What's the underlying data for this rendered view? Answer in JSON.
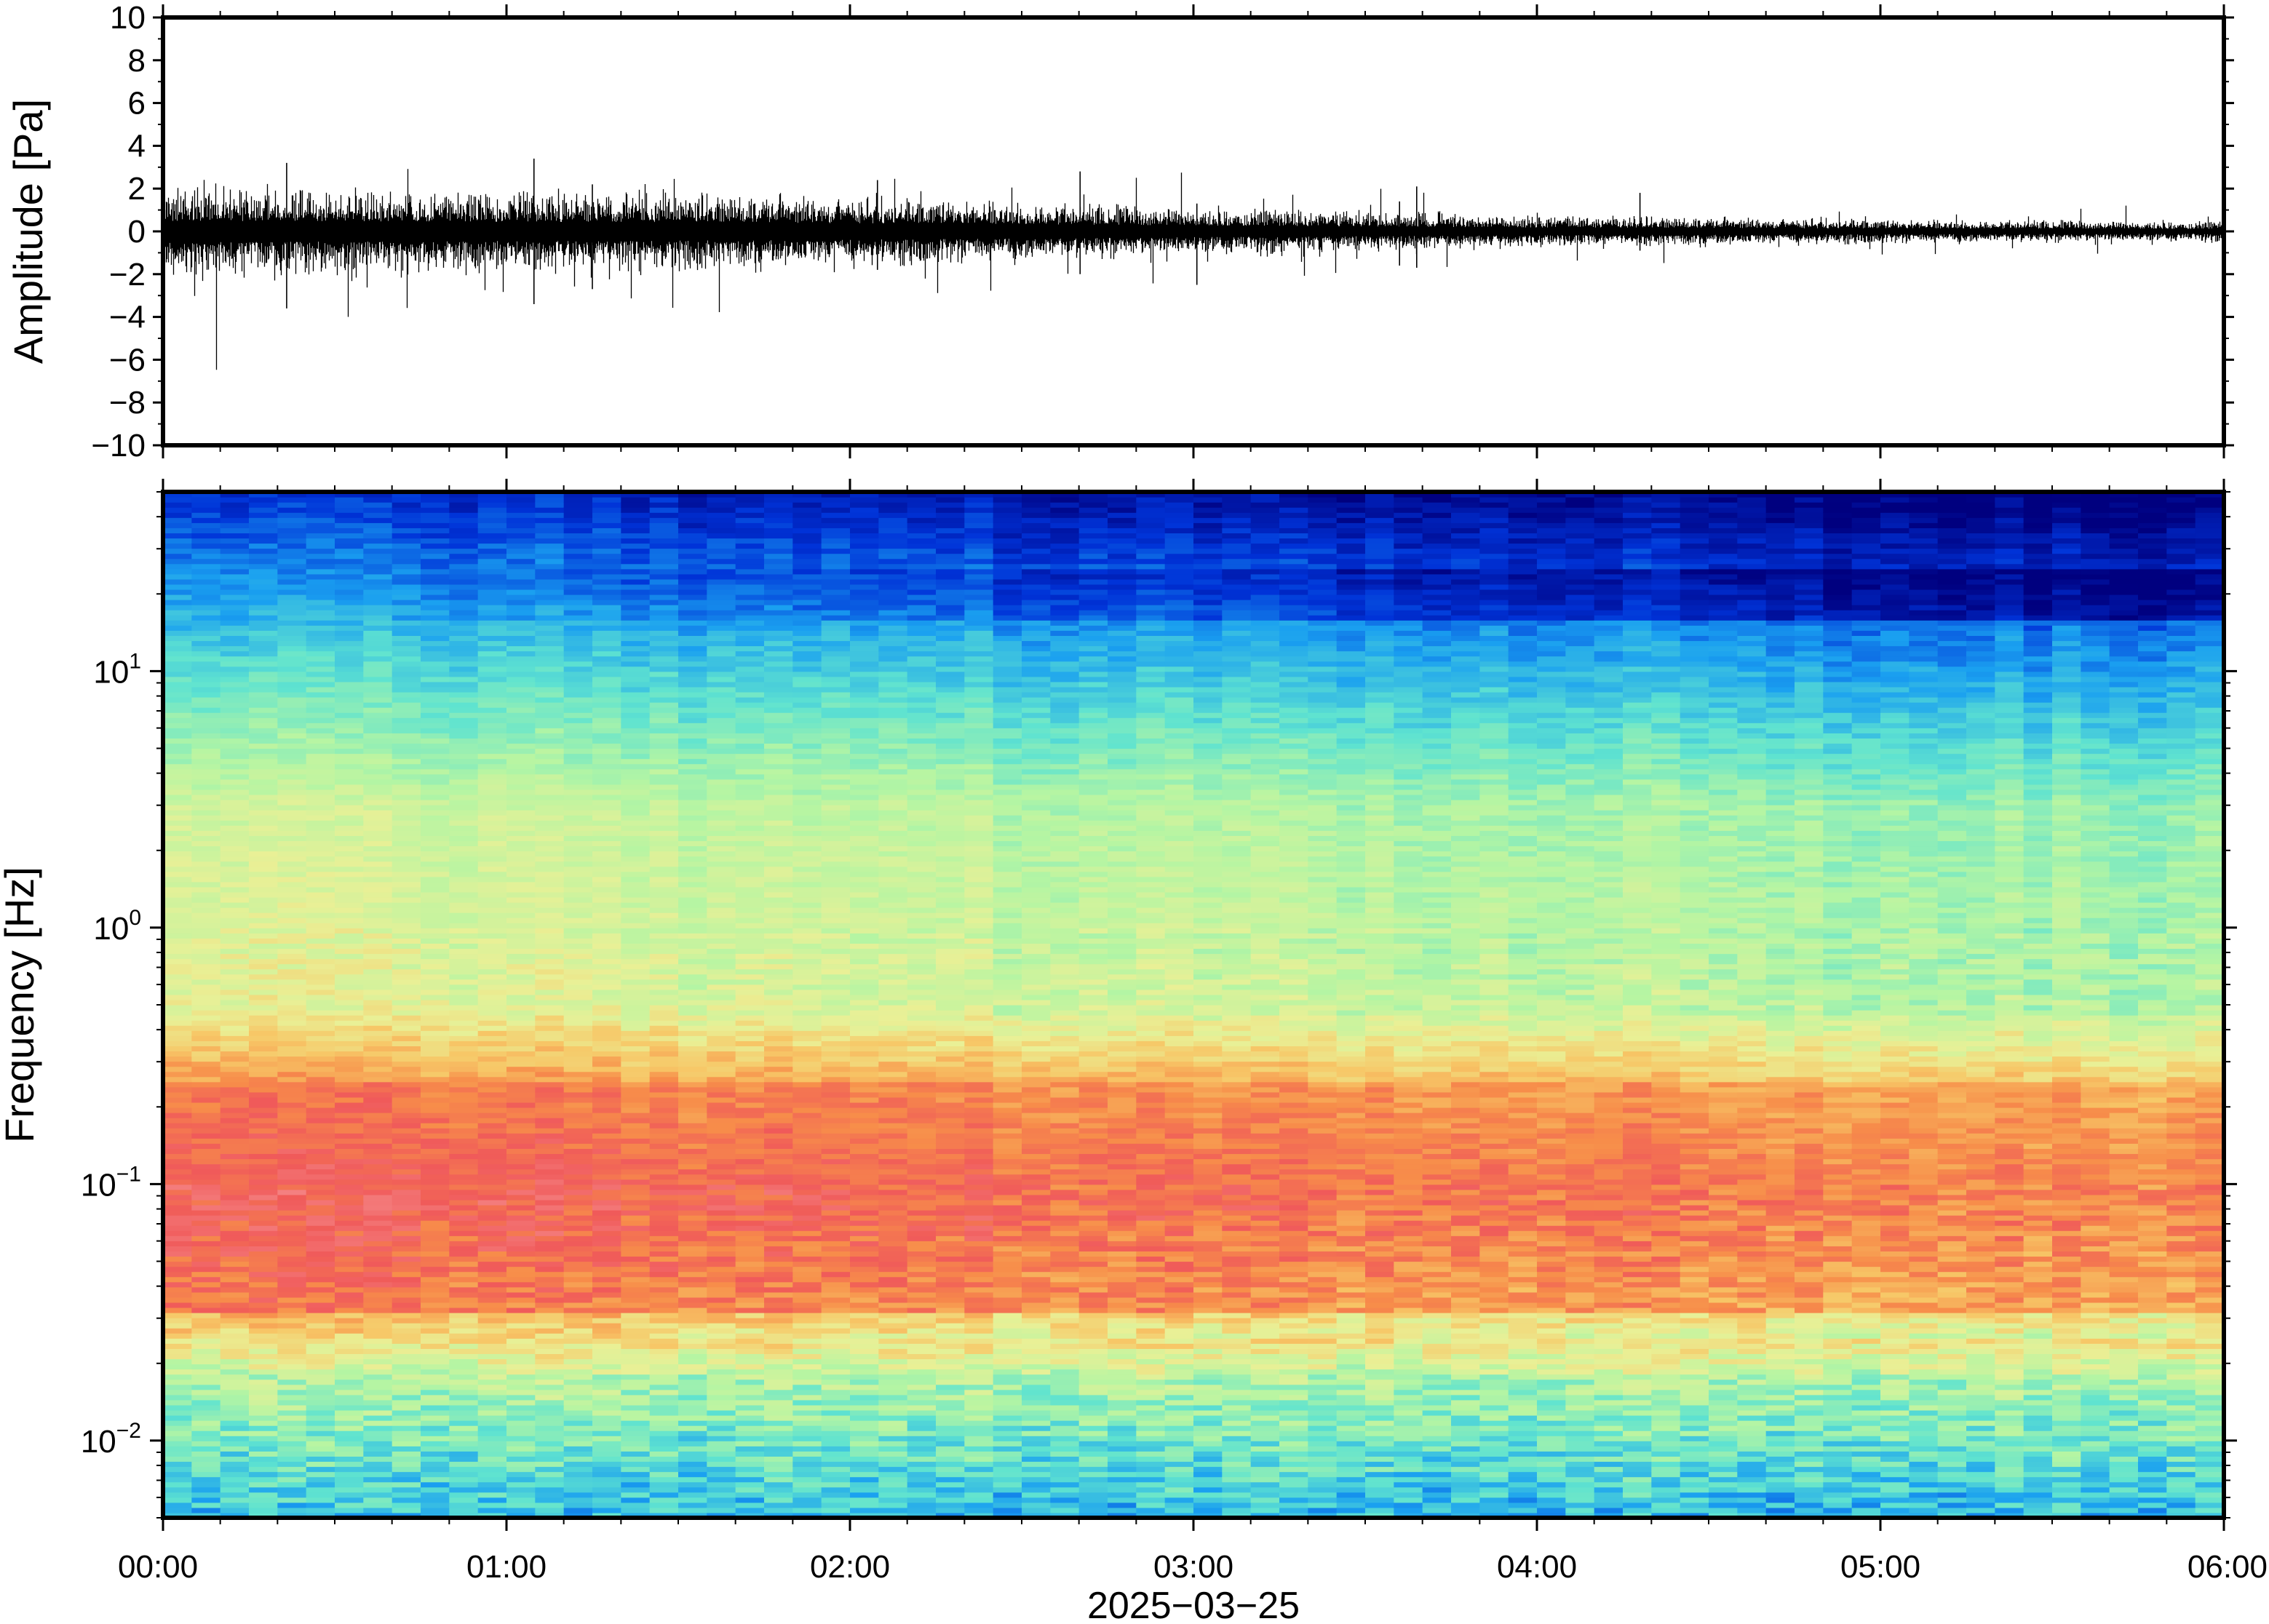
{
  "chart_data": [
    {
      "type": "line",
      "panel": "waveform",
      "ylabel": "Amplitude [Pa]",
      "ylim": [
        -10,
        10
      ],
      "yticks": [
        -10,
        -8,
        -6,
        -4,
        -2,
        0,
        2,
        4,
        6,
        8,
        10
      ],
      "ytick_labels": [
        "−10",
        "−8",
        "−6",
        "−4",
        "−2",
        "0",
        "2",
        "4",
        "6",
        "8",
        "10"
      ],
      "xlim_hours": [
        0,
        6
      ],
      "envelope": {
        "x_hours": [
          0,
          0.5,
          1,
          1.5,
          2,
          2.5,
          3,
          3.5,
          4,
          4.5,
          5,
          5.5,
          6
        ],
        "half_amplitude": [
          1.1,
          1.05,
          1.0,
          0.95,
          0.85,
          0.75,
          0.6,
          0.5,
          0.4,
          0.35,
          0.3,
          0.28,
          0.25
        ]
      },
      "peaks": [
        {
          "x_hours": 0.36,
          "min": -3.6,
          "max": 3.2
        },
        {
          "x_hours": 1.08,
          "min": -3.4,
          "max": 3.4
        },
        {
          "x_hours": 1.25,
          "min": -2.7,
          "max": 2.2
        },
        {
          "x_hours": 2.08,
          "min": -1.8,
          "max": 2.4
        },
        {
          "x_hours": 2.67,
          "min": -2.0,
          "max": 2.8
        },
        {
          "x_hours": 3.01,
          "min": -2.5,
          "max": 1.3
        },
        {
          "x_hours": 3.6,
          "min": -1.6,
          "max": 1.4
        },
        {
          "x_hours": 3.65,
          "min": -1.7,
          "max": 2.1
        },
        {
          "x_hours": 4.3,
          "min": -0.9,
          "max": 1.8
        }
      ],
      "grid": false
    },
    {
      "type": "heatmap",
      "panel": "spectrogram",
      "ylabel": "Frequency [Hz]",
      "yscale": "log",
      "ylim": [
        0.005,
        50
      ],
      "ytick_labels": [
        {
          "base": "10",
          "exp": "−2",
          "value": 0.01
        },
        {
          "base": "10",
          "exp": "−1",
          "value": 0.1
        },
        {
          "base": "10",
          "exp": "0",
          "value": 1
        },
        {
          "base": "10",
          "exp": "1",
          "value": 10
        }
      ],
      "colormap": "rainbow",
      "colors": [
        "#00007f",
        "#0033d8",
        "#1aa0f0",
        "#5fe3d0",
        "#b5f5a3",
        "#e9f096",
        "#f7c767",
        "#f78d4a",
        "#f05a5a",
        "#f58a8a"
      ],
      "description_bands": [
        {
          "freq_hz_range": [
            20,
            50
          ],
          "level": "low"
        },
        {
          "freq_hz_range": [
            5,
            20
          ],
          "level": "medium-low"
        },
        {
          "freq_hz_range": [
            0.4,
            5
          ],
          "level": "medium"
        },
        {
          "freq_hz_range": [
            0.03,
            0.3
          ],
          "level": "high"
        },
        {
          "freq_hz_range": [
            0.005,
            0.02
          ],
          "level": "medium"
        }
      ],
      "grid": false
    }
  ],
  "x_axis": {
    "tick_labels": [
      "00:00",
      "01:00",
      "02:00",
      "03:00",
      "04:00",
      "05:00",
      "06:00"
    ],
    "tick_hours": [
      0,
      1,
      2,
      3,
      4,
      5,
      6
    ],
    "date_label": "2025−03−25"
  }
}
